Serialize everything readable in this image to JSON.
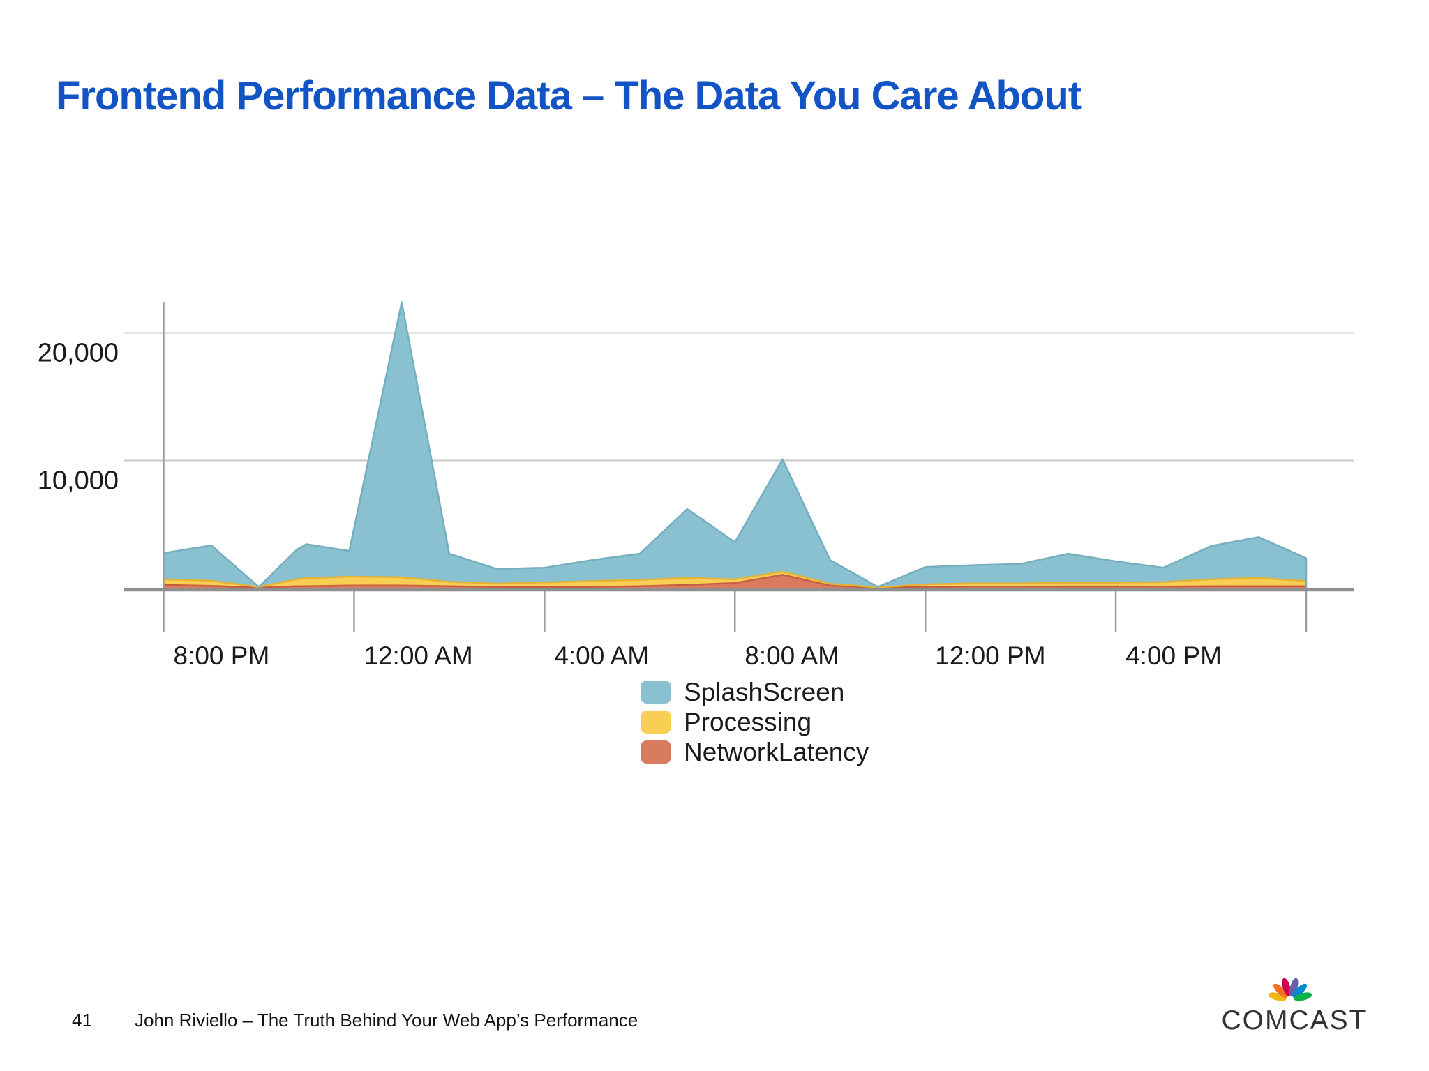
{
  "slide": {
    "title": "Frontend Performance Data – The Data You Care About",
    "footer": {
      "page_number": "41",
      "text": "John Riviello – The Truth Behind Your Web App’s Performance"
    },
    "logo": {
      "wordmark": "COMCAST",
      "peacock_feather_colors": [
        "#F5B50C",
        "#F37021",
        "#CC004C",
        "#6460AA",
        "#0089D0",
        "#0DB14B"
      ]
    }
  },
  "chart_data": {
    "type": "area",
    "stacked": true,
    "title": "",
    "xlabel": "",
    "ylabel": "",
    "x_unit": "hours_after_8pm",
    "time_span": "8:00 PM to 8:00 PM (24 hours)",
    "ylim": [
      0,
      22450
    ],
    "grid": "horizontal gridlines at 10,000 and 20,000; tick marks below x-axis only",
    "legend_position": "bottom-center",
    "legend_order": [
      "SplashScreen",
      "Processing",
      "NetworkLatency"
    ],
    "y_ticks": [
      {
        "label": "20,000",
        "value": 20000
      },
      {
        "label": "10,000",
        "value": 10000
      }
    ],
    "x_ticks": [
      {
        "hour": 0,
        "label": "8:00 PM"
      },
      {
        "hour": 4,
        "label": "12:00 AM"
      },
      {
        "hour": 8,
        "label": "4:00 AM"
      },
      {
        "hour": 12,
        "label": "8:00 AM"
      },
      {
        "hour": 16,
        "label": "12:00 PM"
      },
      {
        "hour": 20,
        "label": "4:00 PM"
      },
      {
        "hour": 24,
        "label": ""
      }
    ],
    "x_hours": [
      0,
      1,
      2,
      2.8,
      3,
      3.9,
      5,
      6,
      7,
      8,
      9,
      10,
      11,
      12,
      13,
      14,
      15,
      16,
      17,
      18,
      19,
      20,
      21,
      22,
      23,
      24
    ],
    "stack_order_bottom_to_top": [
      "NetworkLatency",
      "Processing",
      "SplashScreen"
    ],
    "series": [
      {
        "name": "NetworkLatency",
        "fill": "#D97B5F",
        "stroke": "#C65F41",
        "values": [
          250,
          180,
          40,
          150,
          150,
          200,
          200,
          150,
          100,
          100,
          100,
          150,
          250,
          400,
          1050,
          200,
          30,
          100,
          120,
          120,
          130,
          130,
          120,
          150,
          150,
          150
        ]
      },
      {
        "name": "Processing",
        "fill": "#F8CE55",
        "stroke": "#E4B335",
        "values": [
          450,
          400,
          60,
          550,
          620,
          700,
          650,
          350,
          250,
          350,
          450,
          500,
          550,
          300,
          250,
          150,
          30,
          200,
          250,
          250,
          300,
          300,
          350,
          550,
          650,
          400
        ]
      },
      {
        "name": "SplashScreen",
        "fill": "#8AC1D0",
        "stroke": "#74AEBF",
        "values": [
          2050,
          2770,
          0,
          2330,
          2670,
          2020,
          21550,
          2200,
          1150,
          1150,
          1650,
          2050,
          5400,
          2900,
          8800,
          1850,
          40,
          1350,
          1430,
          1530,
          2270,
          1670,
          1130,
          2600,
          3200,
          1800
        ]
      }
    ],
    "approx_totals": [
      2750,
      3350,
      100,
      3030,
      3440,
      2920,
      22400,
      2700,
      1500,
      1600,
      2200,
      2700,
      6200,
      3600,
      10100,
      2200,
      100,
      1650,
      1800,
      1900,
      2700,
      2100,
      1600,
      3300,
      4000,
      2350
    ]
  }
}
